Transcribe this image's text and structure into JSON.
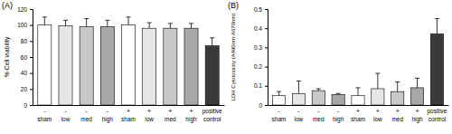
{
  "chart_data": [
    {
      "type": "bar",
      "title": "(A)",
      "y_label": "% Cell viability",
      "categories": [
        "sham",
        "low",
        "med",
        "high",
        "sham",
        "low",
        "med",
        "high",
        "positive control"
      ],
      "category_groups": [
        "-",
        "-",
        "-",
        "-",
        "+",
        "+",
        "+",
        "+",
        null
      ],
      "values": [
        100,
        99,
        98,
        98,
        100,
        96,
        96,
        96,
        74
      ],
      "errors": [
        10,
        7,
        10,
        8,
        10,
        7,
        6,
        6,
        10
      ],
      "colors": [
        "#ffffff",
        "#e6e6e6",
        "#c8c8c8",
        "#a8a8a8",
        "#ffffff",
        "#e6e6e6",
        "#c8c8c8",
        "#a8a8a8",
        "#3a3a3a"
      ],
      "ylim": [
        0,
        120
      ],
      "yticks": [
        0,
        20,
        40,
        60,
        80,
        100,
        120
      ],
      "grid": false
    },
    {
      "type": "bar",
      "title": "(B)",
      "y_label": "LDH Cytotoxicity (A490nm-A670nm)",
      "categories": [
        "sham",
        "low",
        "med",
        "high",
        "sham",
        "low",
        "med",
        "high",
        "positive control"
      ],
      "category_groups": [
        "-",
        "-",
        "-",
        "-",
        "+",
        "+",
        "+",
        "+",
        null
      ],
      "values": [
        0.05,
        0.06,
        0.075,
        0.055,
        0.05,
        0.085,
        0.07,
        0.09,
        0.37
      ],
      "errors": [
        0.02,
        0.065,
        0.01,
        0.005,
        0.04,
        0.08,
        0.05,
        0.05,
        0.08
      ],
      "colors": [
        "#ffffff",
        "#e6e6e6",
        "#c8c8c8",
        "#a8a8a8",
        "#ffffff",
        "#e6e6e6",
        "#c8c8c8",
        "#a8a8a8",
        "#3a3a3a"
      ],
      "ylim": [
        0,
        0.5
      ],
      "yticks": [
        0,
        0.1,
        0.2,
        0.3,
        0.4,
        0.5
      ],
      "grid": false
    }
  ]
}
